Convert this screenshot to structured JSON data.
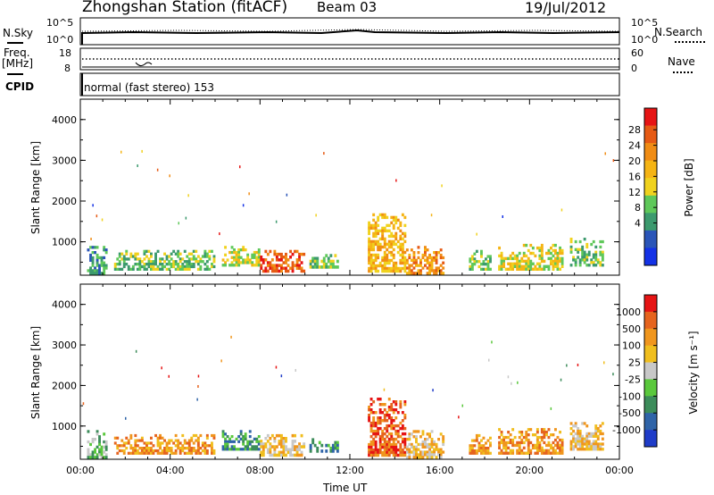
{
  "header": {
    "station": "Zhongshan Station (fitACF)",
    "beam": "Beam 03",
    "date": "19/Jul/2012"
  },
  "top_panels": {
    "nsky_label": "N.Sky",
    "nsky_ticks": [
      "10^5",
      "10^0"
    ],
    "nsearch_label": "N.Search",
    "nsearch_ticks": [
      "10^5",
      "10^0"
    ],
    "freq_label_line1": "Freq.",
    "freq_label_line2": "[MHz]",
    "freq_ticks": [
      "18",
      "8"
    ],
    "nave_label": "Nave",
    "nave_ticks": [
      "60",
      "0"
    ],
    "cpid_label": "CPID",
    "cpid_text": "normal (fast stereo) 153"
  },
  "colors": {
    "power_scale": [
      "#1432e6",
      "#2a55b8",
      "#3c9a6e",
      "#5fc85a",
      "#f0d21e",
      "#f5b414",
      "#f08c14",
      "#e65a14",
      "#e61414"
    ],
    "velocity_scale": [
      "#1f3cc8",
      "#2f64a8",
      "#3c8c5a",
      "#5ac83c",
      "#c8c8c8",
      "#f0be1e",
      "#f0961e",
      "#e6641e",
      "#e61414"
    ]
  },
  "chart_data": [
    {
      "type": "heatmap",
      "name": "power",
      "ylabel": "Slant Range [km]",
      "yticks": [
        "4000",
        "3000",
        "2000",
        "1000"
      ],
      "ylim": [
        180,
        4500
      ],
      "xlim": [
        0,
        24
      ],
      "colorbar_label": "Power [dB]",
      "colorbar_ticks": [
        "28",
        "24",
        "20",
        "16",
        "12",
        "8",
        "4"
      ],
      "colorbar_range": [
        0,
        32
      ],
      "regions": [
        {
          "x": [
            0.3,
            1.2
          ],
          "y": [
            200,
            900
          ],
          "level": 2
        },
        {
          "x": [
            1.5,
            6.0
          ],
          "y": [
            300,
            800
          ],
          "level": 3
        },
        {
          "x": [
            6.3,
            8.0
          ],
          "y": [
            400,
            900
          ],
          "level": 4
        },
        {
          "x": [
            8.0,
            10.0
          ],
          "y": [
            250,
            800
          ],
          "level": 7
        },
        {
          "x": [
            10.2,
            11.5
          ],
          "y": [
            350,
            700
          ],
          "level": 3
        },
        {
          "x": [
            12.8,
            14.5
          ],
          "y": [
            250,
            1700
          ],
          "level": 5
        },
        {
          "x": [
            14.5,
            16.2
          ],
          "y": [
            200,
            900
          ],
          "level": 6
        },
        {
          "x": [
            17.3,
            18.3
          ],
          "y": [
            300,
            800
          ],
          "level": 3
        },
        {
          "x": [
            18.6,
            21.5
          ],
          "y": [
            300,
            950
          ],
          "level": 4
        },
        {
          "x": [
            21.8,
            23.3
          ],
          "y": [
            400,
            1100
          ],
          "level": 3
        }
      ]
    },
    {
      "type": "heatmap",
      "name": "velocity",
      "ylabel": "Slant Range [km]",
      "yticks": [
        "4000",
        "3000",
        "2000",
        "1000"
      ],
      "ylim": [
        180,
        4500
      ],
      "xlim": [
        0,
        24
      ],
      "xticks": [
        "00:00",
        "04:00",
        "08:00",
        "12:00",
        "16:00",
        "20:00",
        "00:00"
      ],
      "xlabel": "Time UT",
      "colorbar_label": "Velocity [m s⁻¹]",
      "colorbar_ticks": [
        "1000",
        "500",
        "100",
        "25",
        "-25",
        "-100",
        "-500",
        "-1000"
      ],
      "regions": [
        {
          "x": [
            0.3,
            1.2
          ],
          "y": [
            200,
            900
          ],
          "level": 3
        },
        {
          "x": [
            1.5,
            6.0
          ],
          "y": [
            300,
            800
          ],
          "level": 6
        },
        {
          "x": [
            6.3,
            8.0
          ],
          "y": [
            400,
            900
          ],
          "level": 2
        },
        {
          "x": [
            8.0,
            10.0
          ],
          "y": [
            250,
            800
          ],
          "level": 5
        },
        {
          "x": [
            10.2,
            11.5
          ],
          "y": [
            350,
            700
          ],
          "level": 2
        },
        {
          "x": [
            12.8,
            14.5
          ],
          "y": [
            250,
            1700
          ],
          "level": 7
        },
        {
          "x": [
            14.5,
            16.2
          ],
          "y": [
            200,
            900
          ],
          "level": 5
        },
        {
          "x": [
            17.3,
            18.3
          ],
          "y": [
            300,
            800
          ],
          "level": 6
        },
        {
          "x": [
            18.6,
            21.5
          ],
          "y": [
            300,
            950
          ],
          "level": 6
        },
        {
          "x": [
            21.8,
            23.3
          ],
          "y": [
            400,
            1100
          ],
          "level": 5
        }
      ]
    }
  ]
}
